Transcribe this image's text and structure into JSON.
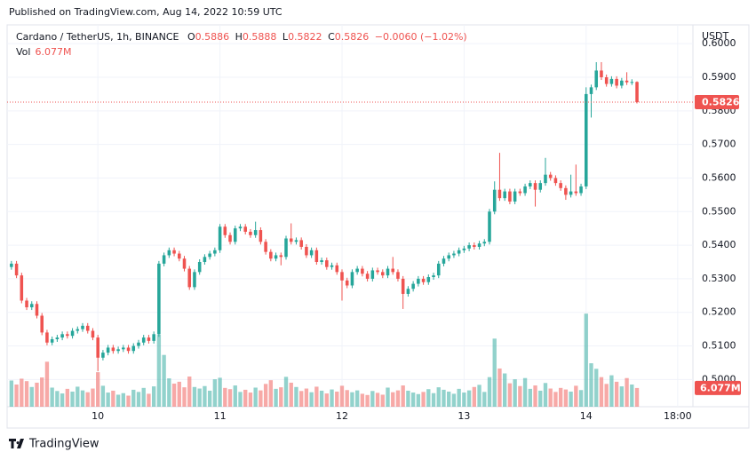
{
  "published": "Published on TradingView.com, Aug 14, 2022 10:59 UTC",
  "footer": "TradingView",
  "chart_data": {
    "type": "candlestick",
    "title": "Cardano / TetherUS, 1h, BINANCE",
    "ohlc_labels": [
      "O",
      "H",
      "L",
      "C"
    ],
    "change": "−0.0060 (−1.02%)",
    "volume_title": "Vol",
    "last_volume_label": "6.077M",
    "currency": "USDT",
    "up_color": "#26a69a",
    "down_color": "#ef5350",
    "grid": true,
    "xlim": [
      -0.5,
      134
    ],
    "xticks": [
      {
        "value": 17,
        "label": "10"
      },
      {
        "value": 41,
        "label": "11"
      },
      {
        "value": 65,
        "label": "12"
      },
      {
        "value": 89,
        "label": "13"
      },
      {
        "value": 113,
        "label": "14"
      },
      {
        "value": 131,
        "label": "18:00"
      }
    ],
    "ylim": [
      0.4919,
      0.6056
    ],
    "yticks": [
      {
        "value": 0.5,
        "label": "0.5000"
      },
      {
        "value": 0.51,
        "label": "0.5100"
      },
      {
        "value": 0.52,
        "label": "0.5200"
      },
      {
        "value": 0.53,
        "label": "0.5300"
      },
      {
        "value": 0.54,
        "label": "0.5400"
      },
      {
        "value": 0.55,
        "label": "0.5500"
      },
      {
        "value": 0.56,
        "label": "0.5600"
      },
      {
        "value": 0.57,
        "label": "0.5700"
      },
      {
        "value": 0.58,
        "label": "0.5800"
      },
      {
        "value": 0.59,
        "label": "0.5900"
      },
      {
        "value": 0.6,
        "label": "0.6000"
      }
    ],
    "volume_lim": [
      0,
      34
    ],
    "open": [
      0.5335,
      0.5345,
      0.531,
      0.5235,
      0.5215,
      0.5225,
      0.519,
      0.514,
      0.511,
      0.512,
      0.5125,
      0.5135,
      0.513,
      0.5145,
      0.515,
      0.516,
      0.5145,
      0.5125,
      0.5065,
      0.508,
      0.5095,
      0.5085,
      0.509,
      0.5095,
      0.5085,
      0.51,
      0.511,
      0.5125,
      0.5115,
      0.5135,
      0.5345,
      0.537,
      0.5385,
      0.5375,
      0.536,
      0.533,
      0.5275,
      0.532,
      0.535,
      0.5365,
      0.5375,
      0.5385,
      0.5455,
      0.543,
      0.541,
      0.545,
      0.5455,
      0.544,
      0.543,
      0.5445,
      0.541,
      0.538,
      0.536,
      0.537,
      0.5365,
      0.542,
      0.541,
      0.5415,
      0.5395,
      0.537,
      0.5385,
      0.535,
      0.5355,
      0.5335,
      0.534,
      0.532,
      0.5295,
      0.528,
      0.532,
      0.533,
      0.5315,
      0.53,
      0.5325,
      0.532,
      0.531,
      0.533,
      0.532,
      0.53,
      0.5255,
      0.527,
      0.5285,
      0.53,
      0.529,
      0.5305,
      0.531,
      0.5345,
      0.536,
      0.537,
      0.5375,
      0.5385,
      0.539,
      0.54,
      0.5395,
      0.5405,
      0.541,
      0.55,
      0.5565,
      0.554,
      0.556,
      0.553,
      0.556,
      0.5555,
      0.5575,
      0.5585,
      0.5565,
      0.5585,
      0.561,
      0.56,
      0.5585,
      0.557,
      0.555,
      0.556,
      0.5555,
      0.5575,
      0.585,
      0.587,
      0.592,
      0.59,
      0.588,
      0.5895,
      0.5875,
      0.589,
      0.5885,
      0.5886
    ],
    "high": [
      0.5353,
      0.5353,
      0.5318,
      0.5243,
      0.5233,
      0.5233,
      0.5198,
      0.5148,
      0.5128,
      0.5133,
      0.5143,
      0.5143,
      0.5153,
      0.5158,
      0.5168,
      0.5168,
      0.5153,
      0.5133,
      0.5088,
      0.5103,
      0.5103,
      0.5098,
      0.5103,
      0.5103,
      0.5108,
      0.5118,
      0.5133,
      0.5133,
      0.5143,
      0.5353,
      0.5378,
      0.5393,
      0.5393,
      0.5383,
      0.5368,
      0.5338,
      0.5328,
      0.5358,
      0.5373,
      0.5383,
      0.5393,
      0.5463,
      0.5463,
      0.5438,
      0.5458,
      0.5463,
      0.5463,
      0.5448,
      0.547,
      0.5453,
      0.5418,
      0.5388,
      0.5378,
      0.5378,
      0.5428,
      0.5465,
      0.5423,
      0.5423,
      0.5403,
      0.5393,
      0.5393,
      0.5363,
      0.5363,
      0.5348,
      0.5348,
      0.5328,
      0.5303,
      0.5328,
      0.5338,
      0.5338,
      0.5323,
      0.5333,
      0.5333,
      0.5328,
      0.5338,
      0.5365,
      0.5328,
      0.5308,
      0.5278,
      0.5293,
      0.5308,
      0.5308,
      0.5313,
      0.5318,
      0.5353,
      0.5368,
      0.5378,
      0.5383,
      0.5393,
      0.5398,
      0.5408,
      0.5408,
      0.5413,
      0.5418,
      0.5508,
      0.559,
      0.5675,
      0.5568,
      0.5568,
      0.5568,
      0.5568,
      0.5583,
      0.5593,
      0.5593,
      0.5593,
      0.566,
      0.5618,
      0.5608,
      0.5593,
      0.5578,
      0.561,
      0.564,
      0.5583,
      0.587,
      0.5878,
      0.5945,
      0.5945,
      0.5908,
      0.5903,
      0.5903,
      0.5898,
      0.5915,
      0.5894,
      0.5888
    ],
    "low": [
      0.5327,
      0.5302,
      0.5227,
      0.5207,
      0.5207,
      0.5182,
      0.5132,
      0.5102,
      0.5102,
      0.5112,
      0.5117,
      0.5122,
      0.5122,
      0.5137,
      0.5142,
      0.5137,
      0.5117,
      0.5025,
      0.5057,
      0.5072,
      0.5077,
      0.5077,
      0.5082,
      0.5077,
      0.5077,
      0.5092,
      0.5102,
      0.5107,
      0.5107,
      0.5127,
      0.5337,
      0.5362,
      0.5367,
      0.5352,
      0.5322,
      0.5267,
      0.5267,
      0.5312,
      0.5342,
      0.5357,
      0.5367,
      0.5377,
      0.5422,
      0.5402,
      0.5402,
      0.5442,
      0.5432,
      0.5422,
      0.5422,
      0.5402,
      0.5372,
      0.5352,
      0.5352,
      0.534,
      0.5357,
      0.5402,
      0.5402,
      0.5387,
      0.5362,
      0.5362,
      0.5342,
      0.5342,
      0.5327,
      0.5327,
      0.5312,
      0.5235,
      0.5272,
      0.5272,
      0.5312,
      0.5307,
      0.5292,
      0.5292,
      0.5312,
      0.5302,
      0.5302,
      0.5312,
      0.5292,
      0.521,
      0.5247,
      0.5262,
      0.5277,
      0.5282,
      0.5282,
      0.5297,
      0.5302,
      0.5337,
      0.5352,
      0.5362,
      0.5367,
      0.5377,
      0.5382,
      0.5387,
      0.5387,
      0.5397,
      0.5402,
      0.5492,
      0.5532,
      0.5532,
      0.5522,
      0.5522,
      0.5547,
      0.5547,
      0.5567,
      0.5515,
      0.5557,
      0.5577,
      0.5592,
      0.5577,
      0.5562,
      0.5535,
      0.5542,
      0.5547,
      0.5547,
      0.5567,
      0.578,
      0.5862,
      0.5892,
      0.5872,
      0.5872,
      0.5867,
      0.5867,
      0.5877,
      0.5877,
      0.5822
    ],
    "close": [
      0.5345,
      0.531,
      0.5235,
      0.5215,
      0.5225,
      0.519,
      0.514,
      0.511,
      0.512,
      0.5125,
      0.5135,
      0.513,
      0.5145,
      0.515,
      0.516,
      0.5145,
      0.5125,
      0.5065,
      0.508,
      0.5095,
      0.5085,
      0.509,
      0.5095,
      0.5085,
      0.51,
      0.511,
      0.5125,
      0.5115,
      0.5135,
      0.5345,
      0.537,
      0.5385,
      0.5375,
      0.536,
      0.533,
      0.5275,
      0.532,
      0.535,
      0.5365,
      0.5375,
      0.5385,
      0.5455,
      0.543,
      0.541,
      0.545,
      0.5455,
      0.544,
      0.543,
      0.5445,
      0.541,
      0.538,
      0.536,
      0.537,
      0.5365,
      0.542,
      0.541,
      0.5415,
      0.5395,
      0.537,
      0.5385,
      0.535,
      0.5355,
      0.5335,
      0.534,
      0.532,
      0.5295,
      0.528,
      0.532,
      0.533,
      0.5315,
      0.53,
      0.5325,
      0.532,
      0.531,
      0.533,
      0.532,
      0.53,
      0.5255,
      0.527,
      0.5285,
      0.53,
      0.529,
      0.5305,
      0.531,
      0.5345,
      0.536,
      0.537,
      0.5375,
      0.5385,
      0.539,
      0.54,
      0.5395,
      0.5405,
      0.541,
      0.55,
      0.5565,
      0.554,
      0.556,
      0.553,
      0.556,
      0.5555,
      0.5575,
      0.5585,
      0.5565,
      0.5585,
      0.561,
      0.56,
      0.5585,
      0.557,
      0.555,
      0.556,
      0.5555,
      0.5575,
      0.585,
      0.587,
      0.592,
      0.59,
      0.588,
      0.5895,
      0.5875,
      0.589,
      0.5885,
      0.5886,
      0.5826
    ],
    "volume": [
      8.5,
      7.2,
      9.1,
      8.3,
      6.4,
      7.8,
      9.5,
      14.6,
      6.2,
      5.1,
      4.3,
      5.8,
      4.9,
      6.5,
      5.3,
      4.7,
      5.9,
      11.2,
      6.8,
      4.6,
      5.2,
      3.9,
      4.4,
      3.6,
      5.5,
      4.8,
      6.1,
      4.2,
      6.6,
      23.4,
      16.8,
      9.2,
      7.5,
      8.1,
      6.3,
      9.8,
      6.4,
      5.9,
      6.7,
      5.2,
      8.9,
      9.4,
      6.1,
      5.7,
      6.9,
      4.8,
      5.5,
      4.6,
      6.2,
      5.3,
      7.4,
      8.6,
      5.8,
      6.3,
      9.7,
      7.8,
      6.4,
      5.1,
      5.9,
      4.7,
      6.5,
      5.2,
      4.3,
      5.6,
      4.9,
      6.8,
      5.4,
      4.7,
      5.3,
      4.2,
      3.8,
      5.1,
      4.5,
      3.9,
      6.2,
      4.7,
      5.3,
      6.9,
      5.2,
      4.6,
      4.1,
      4.8,
      5.7,
      4.4,
      6.3,
      5.5,
      4.9,
      4.2,
      5.8,
      4.6,
      5.3,
      6.4,
      7.1,
      4.8,
      9.6,
      22.1,
      12.4,
      10.8,
      7.6,
      8.9,
      6.7,
      9.3,
      5.8,
      6.9,
      5.2,
      7.7,
      5.9,
      4.8,
      6.1,
      5.6,
      4.9,
      6.8,
      5.4,
      30.2,
      14.1,
      12.3,
      9.6,
      7.4,
      10.2,
      8.1,
      6.6,
      9.3,
      7.2,
      6.077
    ]
  }
}
